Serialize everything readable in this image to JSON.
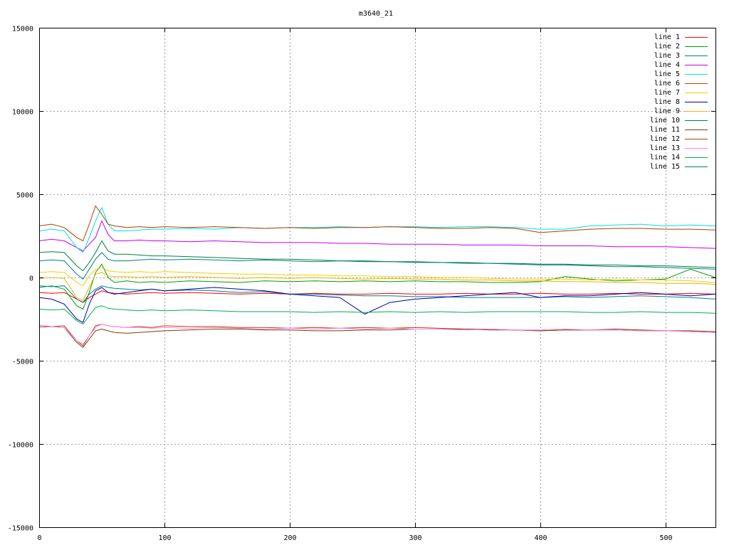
{
  "chart_data": {
    "type": "line",
    "title": "m3640_21",
    "xlabel": "",
    "ylabel": "",
    "xlim": [
      0,
      540
    ],
    "ylim": [
      -15000,
      15000
    ],
    "x_ticks": [
      0,
      100,
      200,
      300,
      400,
      500
    ],
    "y_ticks": [
      -15000,
      -10000,
      -5000,
      0,
      5000,
      10000,
      15000
    ],
    "grid": true,
    "legend_position": "top-right",
    "x": [
      0,
      10,
      20,
      30,
      35,
      40,
      45,
      50,
      55,
      60,
      70,
      80,
      90,
      100,
      120,
      140,
      160,
      180,
      200,
      220,
      240,
      260,
      280,
      300,
      320,
      340,
      360,
      380,
      400,
      420,
      440,
      460,
      480,
      500,
      520,
      540
    ],
    "series": [
      {
        "name": "line 1",
        "color": "#ff0000",
        "values": [
          -900,
          -950,
          -900,
          -1300,
          -1500,
          -1200,
          -1000,
          -800,
          -900,
          -950,
          -1000,
          -950,
          -900,
          -950,
          -900,
          -950,
          -1000,
          -950,
          -1000,
          -950,
          -1000,
          -1000,
          -950,
          -1000,
          -1000,
          -950,
          -1000,
          -1000,
          -950,
          -1000,
          -1000,
          -950,
          -1000,
          -1000,
          -950,
          -1000
        ]
      },
      {
        "name": "line 2",
        "color": "#00a000",
        "values": [
          -600,
          -500,
          -700,
          -1700,
          -1900,
          -900,
          300,
          800,
          0,
          -300,
          -200,
          -300,
          -250,
          -300,
          -200,
          -250,
          -300,
          -200,
          -250,
          -200,
          -250,
          -200,
          -250,
          -200,
          -250,
          -250,
          -300,
          -300,
          -250,
          50,
          -100,
          -200,
          -150,
          -100,
          500,
          0
        ]
      },
      {
        "name": "line 3",
        "color": "#00808b",
        "values": [
          -500,
          -550,
          -500,
          -1300,
          -1500,
          -1000,
          -700,
          -500,
          -600,
          -650,
          -700,
          -750,
          -700,
          -800,
          -750,
          -800,
          -900,
          -850,
          -1000,
          -1000,
          -1050,
          -1100,
          -1100,
          -1150,
          -1150,
          -1200,
          -1200,
          -1200,
          -1200,
          -1150,
          -1200,
          -1150,
          -1100,
          -1150,
          -1200,
          -1300
        ]
      },
      {
        "name": "line 4",
        "color": "#c000ff",
        "values": [
          2200,
          2300,
          2200,
          1800,
          1600,
          2000,
          2400,
          3400,
          2600,
          2200,
          2200,
          2250,
          2200,
          2200,
          2150,
          2200,
          2150,
          2100,
          2100,
          2100,
          2050,
          2050,
          2000,
          2000,
          2000,
          1950,
          1950,
          1950,
          1900,
          1900,
          1900,
          1850,
          1850,
          1850,
          1800,
          1750
        ]
      },
      {
        "name": "line 5",
        "color": "#00e0e0",
        "values": [
          2800,
          2900,
          2800,
          1800,
          1500,
          2400,
          3400,
          4200,
          3200,
          2800,
          2800,
          2850,
          2900,
          2900,
          2950,
          2900,
          3000,
          2950,
          3000,
          3000,
          3050,
          3000,
          3050,
          3050,
          3000,
          3050,
          3050,
          3000,
          2900,
          2900,
          3100,
          3150,
          3200,
          3100,
          3150,
          3100
        ]
      },
      {
        "name": "line 6",
        "color": "#c04000",
        "values": [
          -2900,
          -2950,
          -2900,
          -3800,
          -4100,
          -3500,
          -2900,
          -2800,
          -2900,
          -2950,
          -3000,
          -2950,
          -3000,
          -2900,
          -2950,
          -2950,
          -3000,
          -3000,
          -3050,
          -3000,
          -3050,
          -3000,
          -3050,
          -3000,
          -3050,
          -3100,
          -3100,
          -3150,
          -3200,
          -3150,
          -3150,
          -3150,
          -3200,
          -3200,
          -3250,
          -3300
        ]
      },
      {
        "name": "line 7",
        "color": "#f0d000",
        "values": [
          300,
          350,
          300,
          -300,
          -500,
          100,
          500,
          600,
          400,
          350,
          300,
          350,
          300,
          350,
          300,
          250,
          200,
          200,
          150,
          150,
          100,
          100,
          50,
          50,
          0,
          0,
          -50,
          -100,
          -100,
          -100,
          -150,
          -100,
          -150,
          -150,
          -200,
          -300
        ]
      },
      {
        "name": "line 8",
        "color": "#0000b0",
        "values": [
          -1200,
          -1300,
          -1600,
          -2500,
          -2700,
          -1600,
          -800,
          -600,
          -900,
          -1000,
          -900,
          -800,
          -700,
          -800,
          -700,
          -600,
          -700,
          -800,
          -1000,
          -1100,
          -1200,
          -2200,
          -1500,
          -1300,
          -1200,
          -1100,
          -1000,
          -900,
          -1200,
          -1100,
          -1100,
          -1000,
          -900,
          -1000,
          -1100,
          -1000
        ]
      },
      {
        "name": "line 9",
        "color": "#f0b000",
        "values": [
          -50,
          0,
          -50,
          -1200,
          -1400,
          -600,
          200,
          300,
          100,
          50,
          50,
          0,
          50,
          0,
          50,
          0,
          -50,
          0,
          -50,
          0,
          -50,
          -100,
          -50,
          -100,
          -100,
          -150,
          -150,
          -200,
          -200,
          -250,
          -250,
          -300,
          -300,
          -350,
          -350,
          -400
        ]
      },
      {
        "name": "line 10",
        "color": "#008040",
        "values": [
          1500,
          1550,
          1500,
          700,
          400,
          900,
          1500,
          2200,
          1600,
          1400,
          1400,
          1350,
          1300,
          1300,
          1250,
          1200,
          1150,
          1100,
          1100,
          1050,
          1000,
          1000,
          950,
          950,
          900,
          900,
          850,
          850,
          800,
          800,
          750,
          750,
          700,
          700,
          650,
          600
        ]
      },
      {
        "name": "line 11",
        "color": "#804000",
        "values": [
          -3000,
          -2950,
          -3000,
          -3900,
          -4200,
          -3700,
          -3200,
          -3100,
          -3200,
          -3300,
          -3350,
          -3300,
          -3250,
          -3200,
          -3150,
          -3100,
          -3100,
          -3150,
          -3150,
          -3200,
          -3200,
          -3150,
          -3150,
          -3100,
          -3100,
          -3100,
          -3150,
          -3150,
          -3200,
          -3150,
          -3150,
          -3100,
          -3150,
          -3200,
          -3200,
          -3250
        ]
      },
      {
        "name": "line 12",
        "color": "#b04000",
        "values": [
          3100,
          3200,
          3000,
          2400,
          2200,
          3200,
          4300,
          3800,
          3200,
          3100,
          3000,
          3050,
          3000,
          3050,
          3000,
          3050,
          3000,
          2950,
          3000,
          2950,
          3000,
          3000,
          3050,
          3000,
          2950,
          2950,
          3000,
          2950,
          2700,
          2800,
          2900,
          2950,
          2950,
          2900,
          2900,
          2850
        ]
      },
      {
        "name": "line 13",
        "color": "#ff80ff",
        "values": [
          -3000,
          -2950,
          -3000,
          -3800,
          -4000,
          -3500,
          -3000,
          -2800,
          -2900,
          -2950,
          -3000,
          -3000,
          -3050,
          -3000,
          -3050,
          -3000,
          -3050,
          -3100,
          -3050,
          -3100,
          -3050,
          -3100,
          -3050,
          -3100,
          -3100,
          -3150,
          -3100,
          -3150,
          -3150,
          -3100,
          -3150,
          -3150,
          -3200,
          -3200,
          -3250,
          -3300
        ]
      },
      {
        "name": "line 14",
        "color": "#00b050",
        "values": [
          -1900,
          -1950,
          -1900,
          -2600,
          -2800,
          -2300,
          -1800,
          -1700,
          -1850,
          -1900,
          -1950,
          -2000,
          -1950,
          -2000,
          -1950,
          -2000,
          -2050,
          -2050,
          -2050,
          -2100,
          -2050,
          -2100,
          -2050,
          -2100,
          -2050,
          -2100,
          -2050,
          -2050,
          -2050,
          -2050,
          -2100,
          -2100,
          -2050,
          -2100,
          -2100,
          -2150
        ]
      },
      {
        "name": "line 15",
        "color": "#008080",
        "values": [
          1000,
          1050,
          1000,
          200,
          -100,
          500,
          1100,
          1500,
          1100,
          1000,
          1000,
          1050,
          1100,
          1050,
          1100,
          1050,
          1000,
          1050,
          1000,
          950,
          1000,
          950,
          950,
          900,
          900,
          850,
          850,
          800,
          750,
          750,
          700,
          650,
          650,
          600,
          550,
          500
        ]
      }
    ]
  }
}
